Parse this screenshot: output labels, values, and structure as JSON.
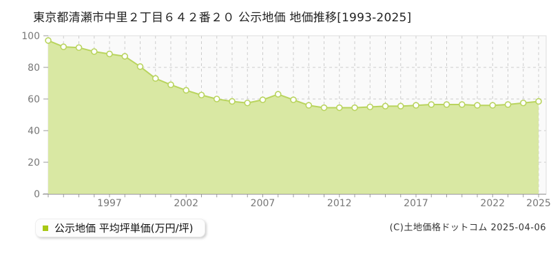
{
  "title": "東京都清瀬市中里２丁目６４２番２０ 公示地価 地価推移[1993-2025]",
  "legend": {
    "label": "公示地価 平均坪単価(万円/坪)"
  },
  "footer": {
    "copyright": "(C)土地価格ドットコム 2025-04-06"
  },
  "colors": {
    "area_fill": "#d9e8a3",
    "line": "#b9d45e",
    "marker_fill": "#ffffff",
    "marker_stroke": "#b9d45e",
    "legend_swatch": "#a8c814",
    "grid": "#cccccc",
    "axis": "#999999",
    "tick_label": "#777777",
    "plot_bg": "#fafafa",
    "plot_border": "#dddddd"
  },
  "chart_data": {
    "type": "area",
    "title": "東京都清瀬市中里２丁目６４２番２０ 公示地価 地価推移[1993-2025]",
    "series_name": "公示地価 平均坪単価(万円/坪)",
    "unit": "万円/坪",
    "x": [
      1993,
      1994,
      1995,
      1996,
      1997,
      1998,
      1999,
      2000,
      2001,
      2002,
      2003,
      2004,
      2005,
      2006,
      2007,
      2008,
      2009,
      2010,
      2011,
      2012,
      2013,
      2014,
      2015,
      2016,
      2017,
      2018,
      2019,
      2020,
      2021,
      2022,
      2023,
      2024,
      2025
    ],
    "values": [
      97,
      93,
      92.5,
      90,
      88.5,
      87,
      80.5,
      73,
      69,
      65.5,
      62.5,
      60,
      58.5,
      57.5,
      59.5,
      63,
      59.5,
      56,
      54.5,
      54.5,
      54.5,
      55,
      55.5,
      55.5,
      56,
      56.5,
      56.5,
      56.5,
      56,
      56,
      56.5,
      57.5,
      58.5
    ],
    "ylim": [
      0,
      100
    ],
    "yticks": [
      0,
      20,
      40,
      60,
      80,
      100
    ],
    "xtick_labeled_years": [
      1997,
      2002,
      2007,
      2012,
      2017,
      2022,
      2025
    ],
    "grid": true,
    "grid_style": "dashed",
    "legend_position": "bottom-left",
    "marker": "circle"
  }
}
